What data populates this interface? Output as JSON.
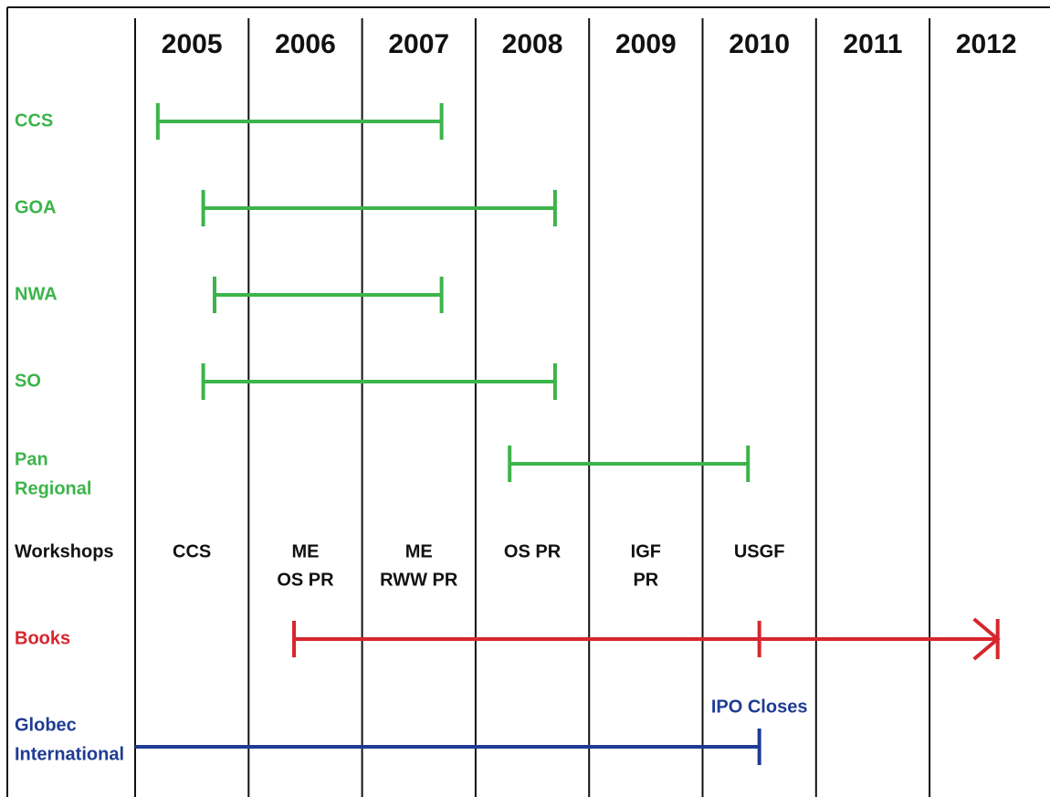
{
  "years": [
    2005,
    2006,
    2007,
    2008,
    2009,
    2010,
    2011,
    2012
  ],
  "rows": [
    {
      "label": [
        "CCS"
      ],
      "color": "#3cb44a",
      "start": 2005.2,
      "end": 2007.7,
      "start_cap": "bar",
      "end_cap": "bar"
    },
    {
      "label": [
        "GOA"
      ],
      "color": "#3cb44a",
      "start": 2005.6,
      "end": 2008.7,
      "start_cap": "bar",
      "end_cap": "bar"
    },
    {
      "label": [
        "NWA"
      ],
      "color": "#3cb44a",
      "start": 2005.7,
      "end": 2007.7,
      "start_cap": "bar",
      "end_cap": "bar"
    },
    {
      "label": [
        "SO"
      ],
      "color": "#3cb44a",
      "start": 2005.6,
      "end": 2008.7,
      "start_cap": "bar",
      "end_cap": "bar"
    },
    {
      "label": [
        "Pan",
        "Regional"
      ],
      "color": "#3cb44a",
      "start": 2008.3,
      "end": 2010.4,
      "start_cap": "bar",
      "end_cap": "bar"
    },
    {
      "label": [
        "Workshops"
      ],
      "color": "#111111",
      "items": [
        {
          "year": 2005,
          "lines": [
            "CCS"
          ]
        },
        {
          "year": 2006,
          "lines": [
            "ME",
            "OS   PR"
          ]
        },
        {
          "year": 2007,
          "lines": [
            "ME",
            "RWW  PR"
          ]
        },
        {
          "year": 2008,
          "lines": [
            "OS   PR"
          ]
        },
        {
          "year": 2009,
          "lines": [
            "IGF",
            "PR"
          ]
        },
        {
          "year": 2010,
          "lines": [
            "USGF"
          ]
        }
      ]
    },
    {
      "label": [
        "Books"
      ],
      "color": "#d7262e",
      "start": 2006.4,
      "end": 2012.6,
      "ticks": [
        2010.5
      ],
      "start_cap": "bar",
      "end_cap": "arrow"
    },
    {
      "label": [
        "Globec",
        "International"
      ],
      "color": "#1f3c94",
      "start": 2005.0,
      "end": 2010.5,
      "start_cap": "none",
      "end_cap": "bar",
      "annotation": "IPO Closes"
    }
  ]
}
